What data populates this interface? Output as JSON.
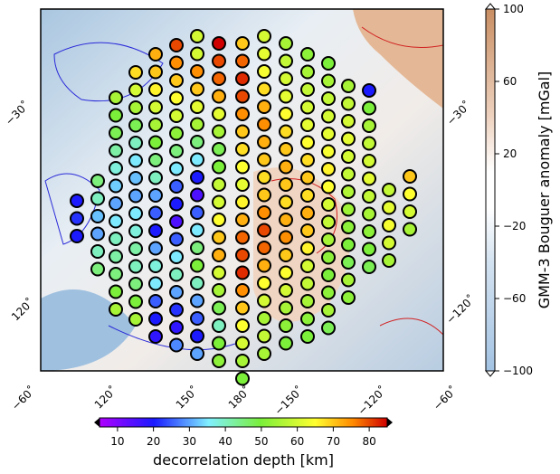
{
  "map": {
    "labels": [
      "−30˚",
      "−30˚",
      "120˚",
      "−120˚",
      "−60˚",
      "120˚",
      "150˚",
      "180˚",
      "−150˚",
      "−120˚",
      "−60˚"
    ],
    "dot_columns": [
      {
        "values": [
          20,
          22,
          20
        ]
      },
      {
        "values": [
          45,
          40,
          32,
          30,
          40,
          45
        ]
      },
      {
        "values": [
          55,
          50,
          48,
          42,
          38,
          33,
          30,
          35,
          40,
          42,
          45,
          50,
          55
        ]
      },
      {
        "values": [
          68,
          60,
          55,
          48,
          40,
          35,
          32,
          30,
          35,
          38,
          42,
          40,
          45,
          50,
          55
        ]
      },
      {
        "values": [
          72,
          70,
          66,
          60,
          55,
          50,
          45,
          40,
          30,
          25,
          20,
          30,
          38,
          35,
          25,
          20,
          18
        ]
      },
      {
        "values": [
          80,
          75,
          70,
          65,
          60,
          52,
          45,
          35,
          25,
          20,
          15,
          25,
          35,
          40,
          30,
          22,
          18,
          28
        ]
      },
      {
        "values": [
          60,
          60,
          75,
          70,
          62,
          55,
          45,
          35,
          20,
          15,
          25,
          35,
          45,
          50,
          40,
          30,
          25,
          20,
          30
        ]
      },
      {
        "values": [
          85,
          80,
          78,
          72,
          62,
          55,
          48,
          50,
          58,
          60,
          65,
          70,
          72,
          60,
          55,
          48,
          40,
          50,
          52
        ]
      },
      {
        "values": [
          70,
          78,
          82,
          80,
          75,
          70,
          68,
          65,
          62,
          66,
          72,
          78,
          80,
          82,
          75,
          70,
          65,
          60,
          55,
          50
        ]
      },
      {
        "values": [
          60,
          62,
          64,
          68,
          72,
          75,
          72,
          70,
          68,
          70,
          75,
          80,
          78,
          72,
          65,
          60,
          55,
          58,
          55
        ]
      },
      {
        "values": [
          55,
          58,
          60,
          62,
          65,
          68,
          70,
          72,
          70,
          68,
          72,
          75,
          70,
          65,
          60,
          55,
          52,
          50
        ]
      },
      {
        "values": [
          52,
          55,
          58,
          60,
          62,
          65,
          68,
          70,
          68,
          72,
          70,
          66,
          60,
          58,
          55,
          52,
          50
        ]
      },
      {
        "values": [
          50,
          55,
          58,
          60,
          62,
          64,
          66,
          65,
          60,
          58,
          55,
          52,
          50,
          52,
          55,
          48
        ]
      },
      {
        "values": [
          55,
          58,
          60,
          62,
          60,
          58,
          56,
          54,
          52,
          50,
          48,
          55,
          52
        ]
      },
      {
        "values": [
          20,
          50,
          55,
          58,
          60,
          62,
          58,
          55,
          52,
          50,
          48
        ]
      },
      {
        "values": [
          58,
          62,
          64,
          60,
          55
        ]
      },
      {
        "values": [
          70,
          65,
          60,
          55
        ]
      }
    ]
  },
  "colorbars": [
    {
      "label": "GMM-3 Bouguer anomaly [mGal]",
      "lim": [
        -100,
        100
      ],
      "ticks": [
        100,
        60,
        20,
        {
          "value": -20,
          "label": "−20"
        },
        {
          "value": -60,
          "label": "−60"
        },
        {
          "value": -100,
          "label": "−100"
        }
      ]
    },
    {
      "label": "decorrelation depth [km]",
      "lim": [
        5,
        85
      ],
      "ticks": [
        10,
        20,
        30,
        40,
        50,
        60,
        70,
        80
      ]
    }
  ]
}
